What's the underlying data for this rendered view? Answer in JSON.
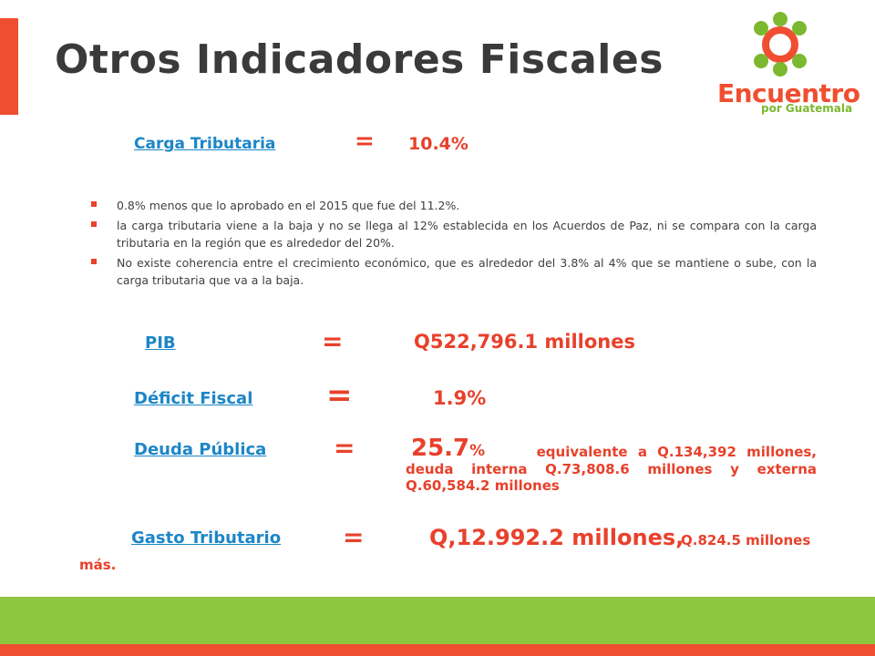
{
  "slide": {
    "title": "Otros Indicadores Fiscales"
  },
  "logo": {
    "word": "Encuentro",
    "sub": "por Guatemala"
  },
  "carga": {
    "label": "Carga Tributaria ",
    "equals": "=",
    "value": "10.4%"
  },
  "bullets": [
    "0.8% menos que lo aprobado en el 2015 que fue del 11.2%.",
    "la carga tributaria viene a la baja y no se llega al 12% establecida en los Acuerdos de Paz, ni se compara con la carga tributaria en la región que es alrededor del 20%.",
    "No existe coherencia entre el crecimiento económico, que es alrededor del 3.8% al 4% que se mantiene o sube, con la carga tributaria que va a la baja."
  ],
  "pib": {
    "label": "PIB ",
    "equals": "=",
    "value": "Q522,796.1 millones"
  },
  "deficit": {
    "label": "Déficit Fiscal",
    "equals": "=",
    "value": "1.9%"
  },
  "deuda": {
    "label": "Deuda Pública",
    "equals": "=",
    "value_main": "25.7",
    "value_pct": "%",
    "detail_line1": "equivalente a Q.134,392 millones,",
    "detail_rest": "deuda interna Q.73,808.6 millones y externa Q.60,584.2 millones"
  },
  "gasto": {
    "label": "Gasto Tributario",
    "equals": "=",
    "value": "Q,12.992.2 millones,",
    "extra": "Q.824.5 millones",
    "tail": "más."
  },
  "colors": {
    "accent": "#f04e30",
    "link": "#1c86c8",
    "value": "#e8412b",
    "green": "#8dc63f",
    "title": "#3a3a3a"
  }
}
